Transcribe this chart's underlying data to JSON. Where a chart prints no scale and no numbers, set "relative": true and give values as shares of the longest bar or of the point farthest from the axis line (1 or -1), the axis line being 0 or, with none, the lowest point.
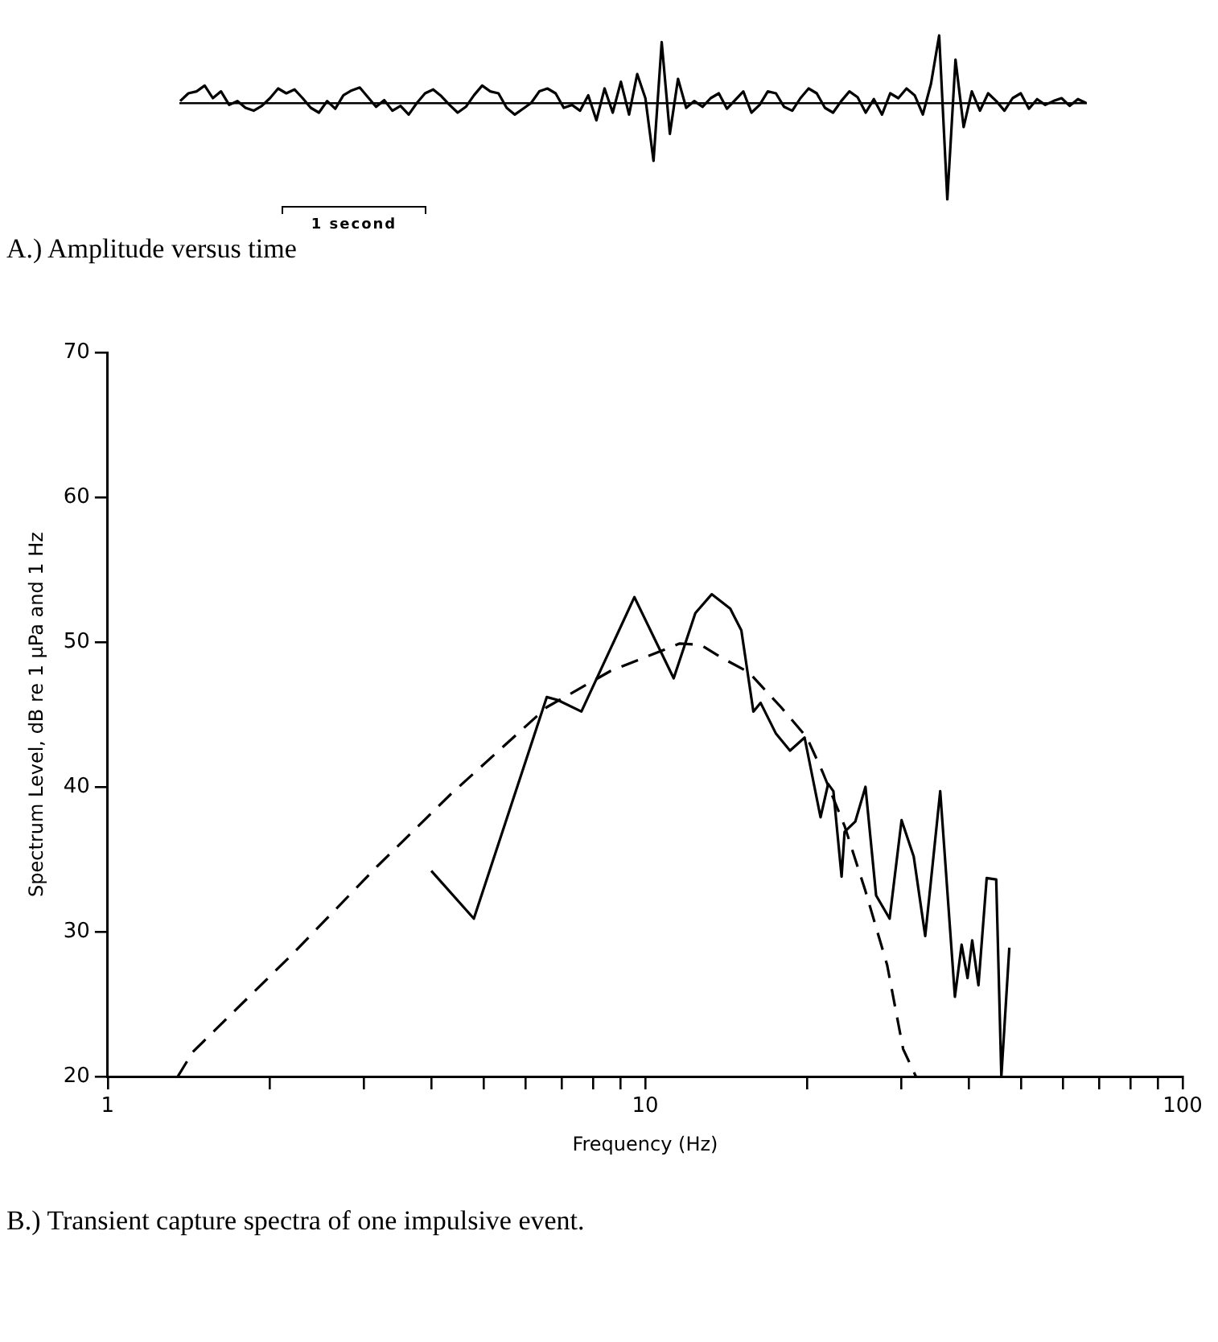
{
  "chart_data": [
    {
      "type": "line",
      "title": "A.) Amplitude versus time",
      "relative": true,
      "marker": "none",
      "annotations": [
        "1 second"
      ],
      "categories": [
        null,
        null,
        null,
        null,
        null,
        null,
        null,
        null,
        null,
        null,
        null,
        null,
        null,
        null,
        null,
        null,
        null,
        null,
        null,
        null,
        null,
        null,
        null,
        null,
        null,
        null,
        null,
        null,
        null,
        null,
        null,
        null,
        null,
        null,
        null,
        null,
        null,
        null,
        null,
        null,
        null,
        null,
        null,
        null,
        null,
        null,
        null,
        null,
        null,
        null,
        null,
        null,
        null,
        null,
        null,
        null,
        null,
        null,
        null,
        null,
        null,
        null,
        null,
        null,
        null,
        null,
        null,
        null,
        null,
        null,
        null,
        null,
        null,
        null,
        null,
        null,
        null,
        null,
        null,
        null,
        null,
        null,
        null,
        null,
        null,
        null,
        null,
        null,
        null,
        null,
        null,
        null,
        null,
        null,
        null,
        null,
        null,
        null,
        null,
        null,
        null,
        null,
        null,
        null,
        null,
        null,
        null,
        null,
        null,
        null,
        null,
        null
      ],
      "series": [
        {
          "color": "#000000",
          "values": [
            0.02,
            0.1,
            0.12,
            0.18,
            0.05,
            0.12,
            -0.02,
            0.02,
            -0.05,
            -0.08,
            -0.03,
            0.05,
            0.15,
            0.1,
            0.14,
            0.05,
            -0.05,
            -0.1,
            0.02,
            -0.06,
            0.08,
            0.13,
            0.16,
            0.06,
            -0.04,
            0.03,
            -0.08,
            -0.03,
            -0.12,
            0.0,
            0.1,
            0.14,
            0.07,
            -0.02,
            -0.1,
            -0.04,
            0.08,
            0.18,
            0.12,
            0.1,
            -0.05,
            -0.12,
            -0.06,
            0.0,
            0.12,
            0.15,
            0.1,
            -0.05,
            -0.02,
            -0.08,
            0.08,
            -0.18,
            0.15,
            -0.1,
            0.22,
            -0.12,
            0.3,
            0.05,
            -0.6,
            0.63,
            -0.32,
            0.25,
            -0.05,
            0.02,
            -0.04,
            0.05,
            0.1,
            -0.06,
            0.03,
            0.12,
            -0.1,
            -0.02,
            0.12,
            0.1,
            -0.04,
            -0.08,
            0.05,
            0.15,
            0.1,
            -0.05,
            -0.1,
            0.02,
            0.12,
            0.06,
            -0.1,
            0.04,
            -0.12,
            0.1,
            0.05,
            0.15,
            0.08,
            -0.12,
            0.2,
            0.7,
            -1,
            0.45,
            -0.25,
            0.12,
            -0.08,
            0.1,
            0.02,
            -0.08,
            0.05,
            0.1,
            -0.06,
            0.04,
            -0.02,
            0.02,
            0.05,
            -0.03,
            0.04,
            0.0
          ]
        }
      ]
    },
    {
      "type": "line",
      "title": "B.) Transient capture spectra of one impulsive event.",
      "xlabel": "Frequency (Hz)",
      "ylabel": "Spectrum Level, dB re 1 μPa and 1 Hz",
      "log": "x",
      "marker": "none",
      "xlim": [
        1,
        100
      ],
      "xticks": [
        1,
        {
          "value": 2,
          "label": null
        },
        {
          "value": 3,
          "label": null
        },
        {
          "value": 4,
          "label": null
        },
        {
          "value": 5,
          "label": null
        },
        {
          "value": 6,
          "label": null
        },
        {
          "value": 7,
          "label": null
        },
        {
          "value": 8,
          "label": null
        },
        {
          "value": 9,
          "label": null
        },
        10,
        {
          "value": 20,
          "label": null
        },
        {
          "value": 30,
          "label": null
        },
        {
          "value": 40,
          "label": null
        },
        {
          "value": 50,
          "label": null
        },
        {
          "value": 60,
          "label": null
        },
        {
          "value": 70,
          "label": null
        },
        {
          "value": 80,
          "label": null
        },
        {
          "value": 90,
          "label": null
        },
        100
      ],
      "ylim": [
        20,
        70
      ],
      "yticks": [
        20,
        30,
        40,
        50,
        60,
        70
      ],
      "series": [
        {
          "color": "#000000",
          "line_style": "solid",
          "x": [
            4,
            4.8,
            6.56,
            6.87,
            7.61,
            9.55,
            11.3,
            12.4,
            13.3,
            14.4,
            15.1,
            15.9,
            16.4,
            17.5,
            18.6,
            19.8,
            21.2,
            21.9,
            22.4,
            23.2,
            23.5,
            24.6,
            25.7,
            26.9,
            28.5,
            30,
            31.6,
            33.2,
            35.4,
            37.7,
            38.8,
            39.8,
            40.6,
            41.7,
            43.2,
            45,
            46,
            47.6
          ],
          "values": [
            34.2,
            30.9,
            46.2,
            46,
            45.2,
            53.1,
            47.5,
            52,
            53.3,
            52.3,
            50.8,
            45.2,
            45.8,
            43.7,
            42.5,
            43.4,
            37.9,
            40.2,
            39.7,
            33.8,
            36.9,
            37.6,
            40,
            32.5,
            30.9,
            37.7,
            35.2,
            29.7,
            39.7,
            25.5,
            29.1,
            26.8,
            29.4,
            26.3,
            33.7,
            33.6,
            20,
            28.9
          ]
        },
        {
          "color": "#000000",
          "line_style": "dashed",
          "x": [
            1.35,
            1.44,
            2.2,
            3.17,
            4.35,
            6.56,
            8.62,
            11.6,
            12.7,
            13.9,
            15.6,
            17.9,
            20,
            21.4,
            23.5,
            25.7,
            28.2,
            30.2,
            31.9
          ],
          "values": [
            20,
            21.7,
            28.4,
            34.5,
            39.5,
            45.5,
            48,
            49.9,
            49.8,
            48.9,
            47.9,
            45.5,
            43.4,
            41,
            37.3,
            32.8,
            27.7,
            21.9,
            20
          ]
        }
      ]
    }
  ]
}
